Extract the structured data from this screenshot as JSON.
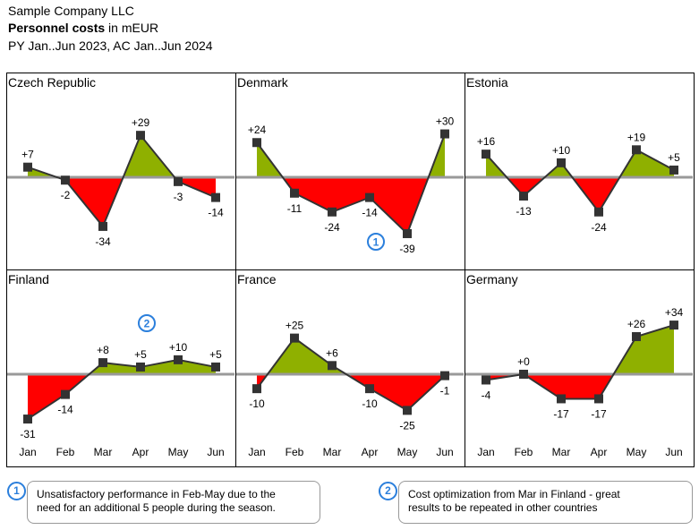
{
  "header": {
    "company": "Sample Company LLC",
    "measure_bold": "Personnel costs",
    "measure_unit": "in mEUR",
    "period": "PY Jan..Jun 2023, AC Jan..Jun 2024"
  },
  "colors": {
    "positive": "#8fb000",
    "negative": "#ff0000",
    "baseline": "#999999",
    "line": "#333333",
    "marker": "#333333",
    "badge": "#2b7fdc"
  },
  "chart_data": {
    "type": "line",
    "description_of_series": "AC minus PY variance per month",
    "categories": [
      "Jan",
      "Feb",
      "Mar",
      "Apr",
      "May",
      "Jun"
    ],
    "series": [
      {
        "name": "Czech Republic",
        "values": [
          7,
          -2,
          -34,
          29,
          -3,
          -14
        ],
        "labels": [
          "+7",
          "-2",
          "-34",
          "+29",
          "-3",
          "-14"
        ]
      },
      {
        "name": "Denmark",
        "values": [
          24,
          -11,
          -24,
          -14,
          -39,
          30
        ],
        "labels": [
          "+24",
          "-11",
          "-24",
          "-14",
          "-39",
          "+30"
        ]
      },
      {
        "name": "Estonia",
        "values": [
          16,
          -13,
          10,
          -24,
          19,
          5
        ],
        "labels": [
          "+16",
          "-13",
          "+10",
          "-24",
          "+19",
          "+5"
        ]
      },
      {
        "name": "Finland",
        "values": [
          -31,
          -14,
          8,
          5,
          10,
          5
        ],
        "labels": [
          "-31",
          "-14",
          "+8",
          "+5",
          "+10",
          "+5"
        ]
      },
      {
        "name": "France",
        "values": [
          -10,
          25,
          6,
          -10,
          -25,
          -1
        ],
        "labels": [
          "-10",
          "+25",
          "+6",
          "-10",
          "-25",
          "-1"
        ]
      },
      {
        "name": "Germany",
        "values": [
          -4,
          0,
          -17,
          -17,
          26,
          34
        ],
        "labels": [
          "-4",
          "+0",
          "-17",
          "-17",
          "+26",
          "+34"
        ]
      }
    ],
    "ylim": [
      -45,
      45
    ],
    "markers": [
      {
        "number": "1",
        "series": "Denmark",
        "category": "Apr"
      },
      {
        "number": "2",
        "series": "Finland",
        "category": "Apr"
      }
    ]
  },
  "notes": [
    {
      "number": "1",
      "text_line1": "Unsatisfactory performance in Feb-May due to the",
      "text_line2": "need for an additional 5 people during the season."
    },
    {
      "number": "2",
      "text_line1": "Cost optimization from Mar in Finland - great",
      "text_line2": "results to be repeated in other countries"
    }
  ]
}
